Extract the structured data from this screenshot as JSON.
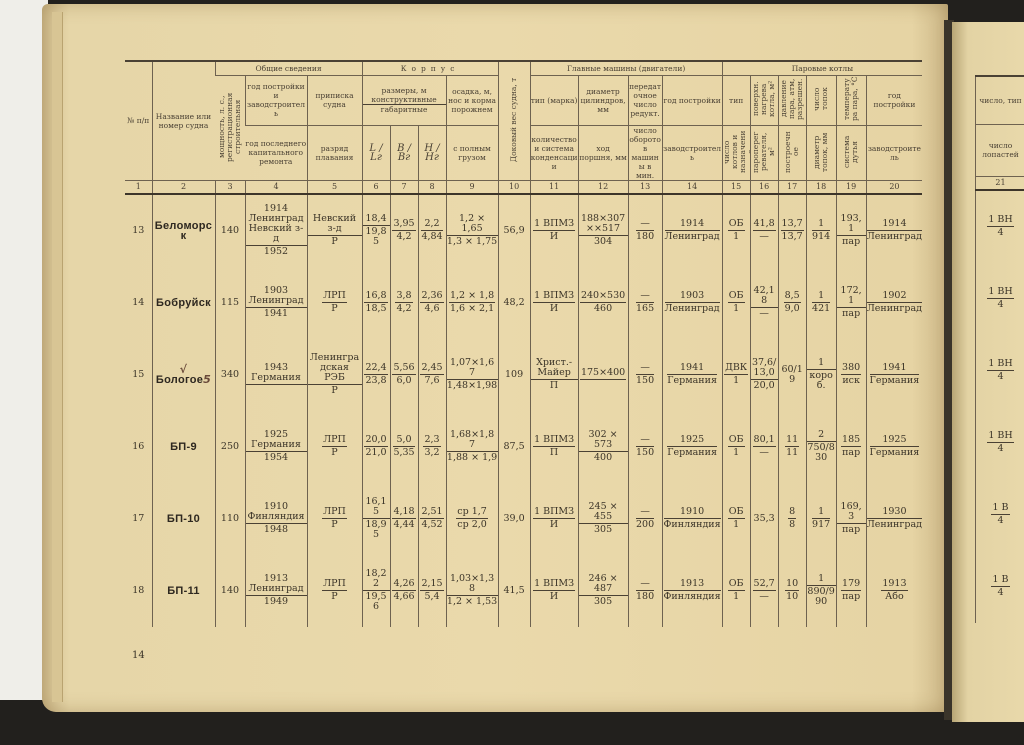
{
  "page_number": "14",
  "headers": {
    "c1": "№ п/п",
    "c2": "Название или номер судна",
    "general": "Общие сведения",
    "c3": "мощность, л. с., регистрационная строительная",
    "c4_top": "год постройки и заводстроитель",
    "c4_bottom": "год последнего капитального ремонта",
    "c5_top": "приписка судна",
    "c5_bottom": "разряд плавания",
    "hull": "Корпус",
    "dims_top": "размеры, м конструктивные",
    "dims_bottom": "габаритные",
    "c6": "L / Lг",
    "c7": "B / Bг",
    "c8": "H / Hг",
    "c9_top": "осадка, м, нос и корма порожнем",
    "c9_bottom": "с полным грузом",
    "c10": "Доковый вес судна, т",
    "engines": "Главные машины (двигатели)",
    "c11_top": "тип (марка)",
    "c11_bottom": "количество и система конденсации",
    "c12_top": "диаметр цилиндров, мм",
    "c12_bottom": "ход поршня, мм",
    "c13_top": "передаточное число редукт.",
    "c13_bottom": "число оборотов машины в мин.",
    "c14_top": "год постройки",
    "c14_bottom": "заводстроитель",
    "boilers": "Паровые котлы",
    "c15_top": "тип",
    "c15_bottom": "число котлов и назначение",
    "c16_top": "поверхн. нагрева котла, м²",
    "c16_bottom": "пароперегревателя, м²",
    "c17_top": "давление пара, атм, разрешен.",
    "c17_bottom": "построечное",
    "c18_top": "число топок",
    "c18_bottom": "диаметр топок, мм",
    "c19_top": "температура пара, °C",
    "c19_bottom": "система дутья",
    "c20_top": "год постройки",
    "c20_bottom": "заводстроитель",
    "c21_top": "число, тип",
    "c21_bottom": "число лопастей",
    "numbers": [
      "1",
      "2",
      "3",
      "4",
      "5",
      "6",
      "7",
      "8",
      "9",
      "10",
      "11",
      "12",
      "13",
      "14",
      "15",
      "16",
      "17",
      "18",
      "19",
      "20"
    ],
    "number21": "21"
  },
  "rows": [
    {
      "cells": [
        "13",
        "Беломорск",
        "140",
        [
          "1914 Ленинград Невский з-д",
          "1952"
        ],
        [
          "Невский з-д",
          "Р"
        ],
        [
          "18,4",
          "19,85"
        ],
        [
          "3,95",
          "4,2"
        ],
        [
          "2,2",
          "4,84"
        ],
        [
          "1,2 × 1,65",
          "1,3 × 1,75"
        ],
        "56,9",
        [
          "1 ВПМЗ",
          "И"
        ],
        [
          "188×307××517",
          "304"
        ],
        [
          "—",
          "180"
        ],
        [
          "1914",
          "Ленинград"
        ],
        [
          "ОБ",
          "1"
        ],
        [
          "41,8",
          "—"
        ],
        [
          "13,7",
          "13,7"
        ],
        [
          "1",
          "914"
        ],
        [
          "193,1",
          "пар"
        ],
        [
          "1914",
          "Ленинград"
        ]
      ],
      "right": [
        "1 ВН",
        "4"
      ]
    },
    {
      "cells": [
        "14",
        "Бобруйск",
        "115",
        [
          "1903 Ленинград",
          "1941"
        ],
        [
          "ЛРП",
          "Р"
        ],
        [
          "16,8",
          "18,5"
        ],
        [
          "3,8",
          "4,2"
        ],
        [
          "2,36",
          "4,6"
        ],
        [
          "1,2 × 1,8",
          "1,6 × 2,1"
        ],
        "48,2",
        [
          "1 ВПМЗ",
          "И"
        ],
        [
          "240×530",
          "460"
        ],
        [
          "—",
          "165"
        ],
        [
          "1903",
          "Ленинград"
        ],
        [
          "ОБ",
          "1"
        ],
        [
          "42,18",
          "—"
        ],
        [
          "8,5",
          "9,0"
        ],
        [
          "1",
          "421"
        ],
        [
          "172,1",
          "пар"
        ],
        [
          "1902",
          "Ленинград"
        ]
      ],
      "right": [
        "1 ВН",
        "4"
      ]
    },
    {
      "cells": [
        "15",
        "Бологое",
        "340",
        [
          "1943 Германия",
          ""
        ],
        [
          "Ленинградская РЭБ",
          "Р"
        ],
        [
          "22,4",
          "23,8"
        ],
        [
          "5,56",
          "6,0"
        ],
        [
          "2,45",
          "7,6"
        ],
        [
          "1,07×1,67",
          "1,48×1,98"
        ],
        "109",
        [
          "Христ.-Майер",
          "П"
        ],
        [
          "175×400",
          ""
        ],
        [
          "—",
          "150"
        ],
        [
          "1941",
          "Германия"
        ],
        [
          "ДВК",
          "1"
        ],
        [
          "37,6/13,0",
          "20,0"
        ],
        "60/19",
        [
          "1",
          "короб."
        ],
        [
          "380",
          "иск"
        ],
        [
          "1941",
          "Германия"
        ]
      ],
      "right": [
        "1 ВН",
        "4"
      ],
      "handwritten_mark": "5"
    },
    {
      "cells": [
        "16",
        "БП-9",
        "250",
        [
          "1925 Германия",
          "1954"
        ],
        [
          "ЛРП",
          "Р"
        ],
        [
          "20,0",
          "21,0"
        ],
        [
          "5,0",
          "5,35"
        ],
        [
          "2,3",
          "3,2"
        ],
        [
          "1,68×1,87",
          "1,88 × 1,9"
        ],
        "87,5",
        [
          "1 ВПМЗ",
          "П"
        ],
        [
          "302 × 573",
          "400"
        ],
        [
          "—",
          "150"
        ],
        [
          "1925",
          "Германия"
        ],
        [
          "ОБ",
          "1"
        ],
        [
          "80,1",
          "—"
        ],
        [
          "11",
          "11"
        ],
        [
          "2",
          "750/830"
        ],
        [
          "185",
          "пар"
        ],
        [
          "1925",
          "Германия"
        ]
      ],
      "right": [
        "1 ВН",
        "4"
      ]
    },
    {
      "cells": [
        "17",
        "БП-10",
        "110",
        [
          "1910 Финляндия",
          "1948"
        ],
        [
          "ЛРП",
          "Р"
        ],
        [
          "16,15",
          "18,95"
        ],
        [
          "4,18",
          "4,44"
        ],
        [
          "2,51",
          "4,52"
        ],
        [
          "ср 1,7",
          "ср 2,0"
        ],
        "39,0",
        [
          "1 ВПМЗ",
          "И"
        ],
        [
          "245 × 455",
          "305"
        ],
        [
          "—",
          "200"
        ],
        [
          "1910",
          "Финляндия"
        ],
        [
          "ОБ",
          "1"
        ],
        "35,3",
        [
          "8",
          "8"
        ],
        [
          "1",
          "917"
        ],
        [
          "169,3",
          "пар"
        ],
        [
          "1930",
          "Ленинград"
        ]
      ],
      "right": [
        "1 В",
        "4"
      ]
    },
    {
      "cells": [
        "18",
        "БП-11",
        "140",
        [
          "1913 Ленинград",
          "1949"
        ],
        [
          "ЛРП",
          "Р"
        ],
        [
          "18,22",
          "19,56"
        ],
        [
          "4,26",
          "4,66"
        ],
        [
          "2,15",
          "5,4"
        ],
        [
          "1,03×1,38",
          "1,2 × 1,53"
        ],
        "41,5",
        [
          "1 ВПМЗ",
          "И"
        ],
        [
          "246 × 487",
          "305"
        ],
        [
          "—",
          "180"
        ],
        [
          "1913",
          "Финляндия"
        ],
        [
          "ОБ",
          "1"
        ],
        [
          "52,7",
          "—"
        ],
        [
          "10",
          "10"
        ],
        [
          "1",
          "890/990"
        ],
        [
          "179",
          "пар"
        ],
        [
          "1913",
          "Або"
        ]
      ],
      "right": [
        "1 В",
        "4"
      ]
    }
  ]
}
